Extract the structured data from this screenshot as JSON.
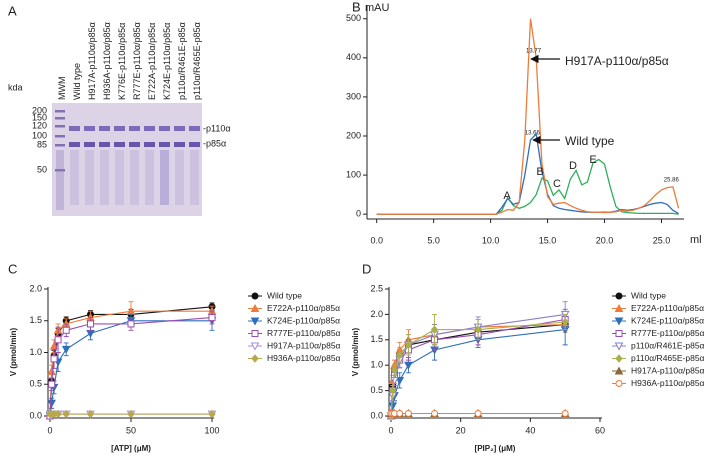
{
  "gel": {
    "panel": "A",
    "unit": "kda",
    "markers": [
      200,
      150,
      120,
      100,
      85,
      50
    ],
    "lanes": [
      "MWM",
      "Wild type",
      "H917A-p110α/p85α",
      "H936A-p110α/p85α",
      "K776E-p110α/p85α",
      "R777E-p110α/p85α",
      "E722A-p110α/p85α",
      "K724E-p110α/p85α",
      "p110α/R461E-p85α",
      "p110α/R465E-p85α"
    ],
    "bands": [
      "-p110α",
      "-p85α"
    ]
  },
  "chart_data": [
    {
      "type": "line",
      "panel": "B",
      "ylabel": "mAU",
      "xlabel": "ml",
      "x": [
        0,
        0.5,
        1,
        1.5,
        2,
        2.5,
        3,
        3.5,
        4,
        4.5,
        5,
        5.5,
        6,
        6.5,
        7,
        7.5,
        8,
        8.5,
        9,
        9.5,
        10,
        10.5,
        11,
        11.5,
        12,
        12.5,
        13,
        13.5,
        14,
        14.5,
        15,
        15.5,
        16,
        16.5,
        17,
        17.5,
        18,
        18.5,
        19,
        19.5,
        20,
        20.5,
        21,
        21.5,
        22,
        22.5,
        23,
        23.5,
        24,
        24.5,
        25,
        25.5,
        26,
        26.5
      ],
      "xlim": [
        -0.5,
        26.8
      ],
      "xticks": [
        {
          "value": 0,
          "label": "0.0"
        },
        {
          "value": 5,
          "label": "5.0"
        },
        {
          "value": 10,
          "label": "10.0"
        },
        {
          "value": 15,
          "label": "15.0"
        },
        {
          "value": 20,
          "label": "20.0"
        },
        {
          "value": 25,
          "label": "25.0"
        }
      ],
      "ylim": [
        -20,
        530
      ],
      "yticks": [
        0,
        100,
        200,
        300,
        400,
        500
      ],
      "annotations": [
        "A",
        "B",
        "C",
        "D",
        "E"
      ],
      "series": [
        {
          "name": "H917A-p110α/p85α",
          "color": "#ee7b3a",
          "peak_labels": [
            13.77,
            25.86
          ],
          "values": [
            0,
            0,
            0,
            0,
            0,
            0,
            0,
            0,
            0,
            0,
            0,
            0,
            0,
            0,
            0,
            0,
            0,
            0,
            0,
            0,
            0,
            0,
            5,
            12,
            10,
            30,
            190,
            500,
            400,
            130,
            45,
            25,
            28,
            30,
            22,
            15,
            10,
            6,
            5,
            5,
            4,
            5,
            6,
            10,
            8,
            10,
            15,
            22,
            35,
            50,
            62,
            68,
            70,
            15
          ]
        },
        {
          "name": "Wild type",
          "color": "#2f6fb8",
          "peak_labels": [
            13.66
          ],
          "values": [
            0,
            0,
            0,
            0,
            0,
            0,
            0,
            0,
            0,
            0,
            0,
            0,
            0,
            0,
            0,
            0,
            0,
            0,
            0,
            0,
            0,
            0,
            18,
            40,
            25,
            30,
            100,
            190,
            205,
            110,
            50,
            22,
            15,
            12,
            10,
            8,
            6,
            5,
            5,
            5,
            5,
            5,
            8,
            12,
            10,
            12,
            15,
            20,
            25,
            28,
            30,
            25,
            10,
            2
          ]
        },
        {
          "color": "#2fae5a",
          "values": [
            0,
            0,
            0,
            0,
            0,
            0,
            0,
            0,
            0,
            0,
            0,
            0,
            0,
            0,
            0,
            0,
            0,
            0,
            0,
            0,
            0,
            0,
            10,
            42,
            22,
            15,
            20,
            30,
            50,
            92,
            85,
            48,
            62,
            40,
            90,
            112,
            75,
            82,
            132,
            140,
            128,
            70,
            20,
            6,
            4,
            3,
            2,
            2,
            2,
            2,
            2,
            2,
            2,
            0
          ]
        }
      ]
    },
    {
      "type": "scatter",
      "panel": "C",
      "ylabel": "V (pmol/min)",
      "xlabel": "[ATP] (μM)",
      "x": [
        0,
        1,
        2.5,
        5,
        10,
        25,
        50,
        100
      ],
      "xlim": [
        0,
        100
      ],
      "xticks": [
        0,
        50,
        100
      ],
      "ylim": [
        0,
        2
      ],
      "yticks": [
        {
          "value": 0,
          "label": "0.0"
        },
        {
          "value": 0.5,
          "label": "0.5"
        },
        {
          "value": 1,
          "label": "1.0"
        },
        {
          "value": 1.5,
          "label": "1.5"
        },
        {
          "value": 2,
          "label": "2.0"
        }
      ],
      "series": [
        {
          "name": "Wild type",
          "color": "#111111",
          "marker": "circle",
          "values": [
            0,
            0.55,
            0.95,
            1.3,
            1.5,
            1.6,
            1.6,
            1.72
          ],
          "errors": [
            0,
            0.05,
            0.08,
            0.08,
            0.06,
            0.06,
            0.08,
            0.06
          ]
        },
        {
          "name": "E722A-p110α/p85α",
          "color": "#ee7b3a",
          "marker": "triangle-up",
          "values": [
            0,
            0.7,
            1.1,
            1.35,
            1.45,
            1.55,
            1.65,
            1.65
          ],
          "errors": [
            0,
            0.1,
            0.1,
            0.1,
            0.08,
            0.1,
            0.15,
            0.08
          ]
        },
        {
          "name": "K724E-p110α/p85α",
          "color": "#2f6fb8",
          "marker": "triangle-down",
          "values": [
            0,
            0.2,
            0.45,
            0.85,
            1.05,
            1.3,
            1.5,
            1.5
          ],
          "errors": [
            0,
            0.08,
            0.1,
            0.15,
            0.1,
            0.1,
            0.1,
            0.15
          ]
        },
        {
          "name": "R777E-p110α/p85α",
          "color": "#9a4fb0",
          "marker": "square-open",
          "values": [
            0,
            0.5,
            0.9,
            1.2,
            1.35,
            1.45,
            1.45,
            1.55
          ],
          "errors": [
            0,
            0.1,
            0.15,
            0.2,
            0.1,
            0.1,
            0.1,
            0.1
          ]
        },
        {
          "name": "H917A-p110α/p85α",
          "color": "#a58fd6",
          "marker": "triangle-down-open",
          "values": [
            0.03,
            0.03,
            0.03,
            0.03,
            0.03,
            0.03,
            0.03,
            0.03
          ],
          "errors": [
            0,
            0,
            0,
            0,
            0,
            0,
            0,
            0
          ]
        },
        {
          "name": "H936A-p110α/p85α",
          "color": "#b7a84c",
          "marker": "diamond",
          "values": [
            0.03,
            0.03,
            0.03,
            0.03,
            0.03,
            0.03,
            0.03,
            0.03
          ],
          "errors": [
            0,
            0,
            0,
            0,
            0,
            0,
            0,
            0
          ]
        }
      ]
    },
    {
      "type": "scatter",
      "panel": "D",
      "ylabel": "V (pmol/min)",
      "xlabel": "[PIP₂] (μM)",
      "x": [
        0,
        0.5,
        1,
        2.5,
        5,
        12.5,
        25,
        50
      ],
      "xlim": [
        0,
        60
      ],
      "xticks": [
        0,
        20,
        40,
        60
      ],
      "ylim": [
        0,
        2.5
      ],
      "yticks": [
        {
          "value": 0,
          "label": "0.0"
        },
        {
          "value": 0.5,
          "label": "0.5"
        },
        {
          "value": 1,
          "label": "1.0"
        },
        {
          "value": 1.5,
          "label": "1.5"
        },
        {
          "value": 2,
          "label": "2.0"
        },
        {
          "value": 2.5,
          "label": "2.5"
        }
      ],
      "series": [
        {
          "name": "Wild type",
          "color": "#111111",
          "marker": "circle",
          "values": [
            0,
            0.6,
            0.9,
            1.2,
            1.4,
            1.5,
            1.65,
            1.8
          ],
          "errors": [
            0,
            0.08,
            0.1,
            0.1,
            0.1,
            0.1,
            0.1,
            0.1
          ]
        },
        {
          "name": "E722A-p110α/p85α",
          "color": "#ee7b3a",
          "marker": "triangle-up",
          "values": [
            0,
            0.7,
            1.0,
            1.3,
            1.5,
            1.6,
            1.75,
            1.8
          ],
          "errors": [
            0,
            0.1,
            0.1,
            0.15,
            0.2,
            0.2,
            0.15,
            0.15
          ]
        },
        {
          "name": "K724E-p110α/p85α",
          "color": "#2f6fb8",
          "marker": "triangle-down",
          "values": [
            0,
            0.2,
            0.4,
            0.7,
            1.0,
            1.3,
            1.5,
            1.7
          ],
          "errors": [
            0,
            0.1,
            0.1,
            0.15,
            0.15,
            0.2,
            0.15,
            0.3
          ]
        },
        {
          "name": "R777E-p110α/p85α",
          "color": "#9a4fb0",
          "marker": "square-open",
          "values": [
            0,
            0.5,
            0.8,
            1.1,
            1.3,
            1.5,
            1.6,
            1.9
          ],
          "errors": [
            0,
            0.1,
            0.1,
            0.15,
            0.2,
            0.2,
            0.2,
            0.2
          ]
        },
        {
          "name": "p110α/R461E-p85α",
          "color": "#8a7fc8",
          "marker": "triangle-down-open",
          "values": [
            0,
            0.4,
            0.7,
            1.1,
            1.4,
            1.6,
            1.75,
            2.0
          ],
          "errors": [
            0,
            0.1,
            0.1,
            0.15,
            0.2,
            0.2,
            0.2,
            0.25
          ]
        },
        {
          "name": "p110α/R465E-p85α",
          "color": "#a9b04a",
          "marker": "diamond",
          "values": [
            0,
            0.5,
            0.9,
            1.2,
            1.4,
            1.7,
            1.7,
            1.85
          ],
          "errors": [
            0,
            0.1,
            0.1,
            0.15,
            0.2,
            0.3,
            0.2,
            0.15
          ]
        },
        {
          "name": "H917A-p110α/p85α",
          "color": "#8a6a3a",
          "marker": "triangle-up",
          "values": [
            0.05,
            0.05,
            0.05,
            0.05,
            0.05,
            0.05,
            0.05,
            0.05
          ],
          "errors": [
            0,
            0,
            0,
            0,
            0,
            0,
            0,
            0
          ]
        },
        {
          "name": "H936A-p110α/p85α",
          "color": "#ee7b3a",
          "marker": "circle-open",
          "values": [
            0.05,
            0.05,
            0.05,
            0.05,
            0.05,
            0.05,
            0.05,
            0.05
          ],
          "errors": [
            0,
            0,
            0,
            0,
            0,
            0,
            0,
            0
          ]
        }
      ]
    }
  ]
}
